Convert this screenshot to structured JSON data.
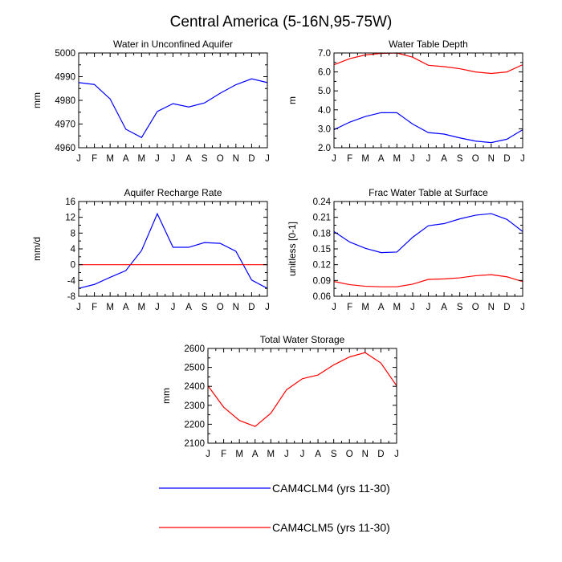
{
  "figure": {
    "title": "Central America (5-16N,95-75W)"
  },
  "colors": {
    "clm4": "#0000ff",
    "clm5": "#ff0000",
    "axis": "#000000"
  },
  "legend": [
    {
      "series": "clm4",
      "label": "CAM4CLM4 (yrs 11-30)"
    },
    {
      "series": "clm5",
      "label": "CAM4CLM5 (yrs 11-30)"
    }
  ],
  "chart_data": [
    {
      "type": "line",
      "title": "Water in Unconfined Aquifer",
      "ylabel": "mm",
      "categories": [
        "J",
        "F",
        "M",
        "A",
        "M",
        "J",
        "J",
        "A",
        "S",
        "O",
        "N",
        "D",
        "J"
      ],
      "ylim": [
        4960,
        5000
      ],
      "yticks": [
        4960,
        4970,
        4980,
        4990,
        5000
      ],
      "yticklabels": [
        "4960",
        "4970",
        "4980",
        "4990",
        "5000"
      ],
      "series": [
        {
          "name": "CAM4CLM4 (yrs 11-30)",
          "color_key": "clm4",
          "values": [
            4987.5,
            4986.7,
            4980.6,
            4967.8,
            4964.3,
            4975.3,
            4978.6,
            4977.2,
            4978.9,
            4983.0,
            4986.6,
            4989.1,
            4987.5
          ]
        }
      ]
    },
    {
      "type": "line",
      "title": "Water Table Depth",
      "ylabel": "m",
      "categories": [
        "J",
        "F",
        "M",
        "A",
        "M",
        "J",
        "J",
        "A",
        "S",
        "O",
        "N",
        "D",
        "J"
      ],
      "ylim": [
        2.0,
        7.0
      ],
      "yticks": [
        2,
        3,
        4,
        5,
        6,
        7
      ],
      "yticklabels": [
        "2.0",
        "3.0",
        "4.0",
        "5.0",
        "6.0",
        "7.0"
      ],
      "series": [
        {
          "name": "CAM4CLM4 (yrs 11-30)",
          "color_key": "clm4",
          "values": [
            2.95,
            3.35,
            3.65,
            3.85,
            3.85,
            3.25,
            2.8,
            2.72,
            2.52,
            2.35,
            2.27,
            2.45,
            2.95
          ]
        },
        {
          "name": "CAM4CLM5 (yrs 11-30)",
          "color_key": "clm5",
          "values": [
            6.38,
            6.7,
            6.9,
            6.98,
            7.0,
            6.78,
            6.35,
            6.28,
            6.17,
            6.0,
            5.92,
            6.0,
            6.38
          ]
        }
      ]
    },
    {
      "type": "line",
      "title": "Aquifer Recharge Rate",
      "ylabel": "mm/d",
      "categories": [
        "J",
        "F",
        "M",
        "A",
        "M",
        "J",
        "J",
        "A",
        "S",
        "O",
        "N",
        "D",
        "J"
      ],
      "ylim": [
        -8,
        16
      ],
      "yticks": [
        -8,
        -4,
        0,
        4,
        8,
        12,
        16
      ],
      "yticklabels": [
        "-8",
        "-4",
        "0",
        "4",
        "8",
        "12",
        "16"
      ],
      "series": [
        {
          "name": "CAM4CLM4 (yrs 11-30)",
          "color_key": "clm4",
          "values": [
            -6.0,
            -5.0,
            -3.2,
            -1.5,
            3.6,
            12.9,
            4.4,
            4.4,
            5.6,
            5.4,
            3.4,
            -3.9,
            -6.0
          ]
        },
        {
          "name": "CAM4CLM5 (yrs 11-30)",
          "color_key": "clm5",
          "values": [
            0,
            0,
            0,
            0,
            0,
            0,
            0,
            0,
            0,
            0,
            0,
            0,
            0
          ]
        }
      ]
    },
    {
      "type": "line",
      "title": "Frac Water Table at Surface",
      "ylabel": "unitless [0-1]",
      "categories": [
        "J",
        "F",
        "M",
        "A",
        "M",
        "J",
        "J",
        "A",
        "S",
        "O",
        "N",
        "D",
        "J"
      ],
      "ylim": [
        0.06,
        0.24
      ],
      "yticks": [
        0.06,
        0.09,
        0.12,
        0.15,
        0.18,
        0.21,
        0.24
      ],
      "yticklabels": [
        "0.06",
        "0.09",
        "0.12",
        "0.15",
        "0.18",
        "0.21",
        "0.24"
      ],
      "series": [
        {
          "name": "CAM4CLM4 (yrs 11-30)",
          "color_key": "clm4",
          "values": [
            0.183,
            0.163,
            0.151,
            0.143,
            0.144,
            0.172,
            0.194,
            0.198,
            0.207,
            0.214,
            0.217,
            0.206,
            0.183
          ]
        },
        {
          "name": "CAM4CLM5 (yrs 11-30)",
          "color_key": "clm5",
          "values": [
            0.088,
            0.082,
            0.079,
            0.078,
            0.078,
            0.083,
            0.092,
            0.093,
            0.095,
            0.099,
            0.101,
            0.097,
            0.088
          ]
        }
      ]
    },
    {
      "type": "line",
      "title": "Total Water Storage",
      "ylabel": "mm",
      "categories": [
        "J",
        "F",
        "M",
        "A",
        "M",
        "J",
        "J",
        "A",
        "S",
        "O",
        "N",
        "D",
        "J"
      ],
      "ylim": [
        2100,
        2600
      ],
      "yticks": [
        2100,
        2200,
        2300,
        2400,
        2500,
        2600
      ],
      "yticklabels": [
        "2100",
        "2200",
        "2300",
        "2400",
        "2500",
        "2600"
      ],
      "series": [
        {
          "name": "CAM4CLM5 (yrs 11-30)",
          "color_key": "clm5",
          "values": [
            2403,
            2290,
            2220,
            2188,
            2258,
            2382,
            2440,
            2460,
            2513,
            2555,
            2578,
            2523,
            2403
          ]
        }
      ]
    }
  ]
}
